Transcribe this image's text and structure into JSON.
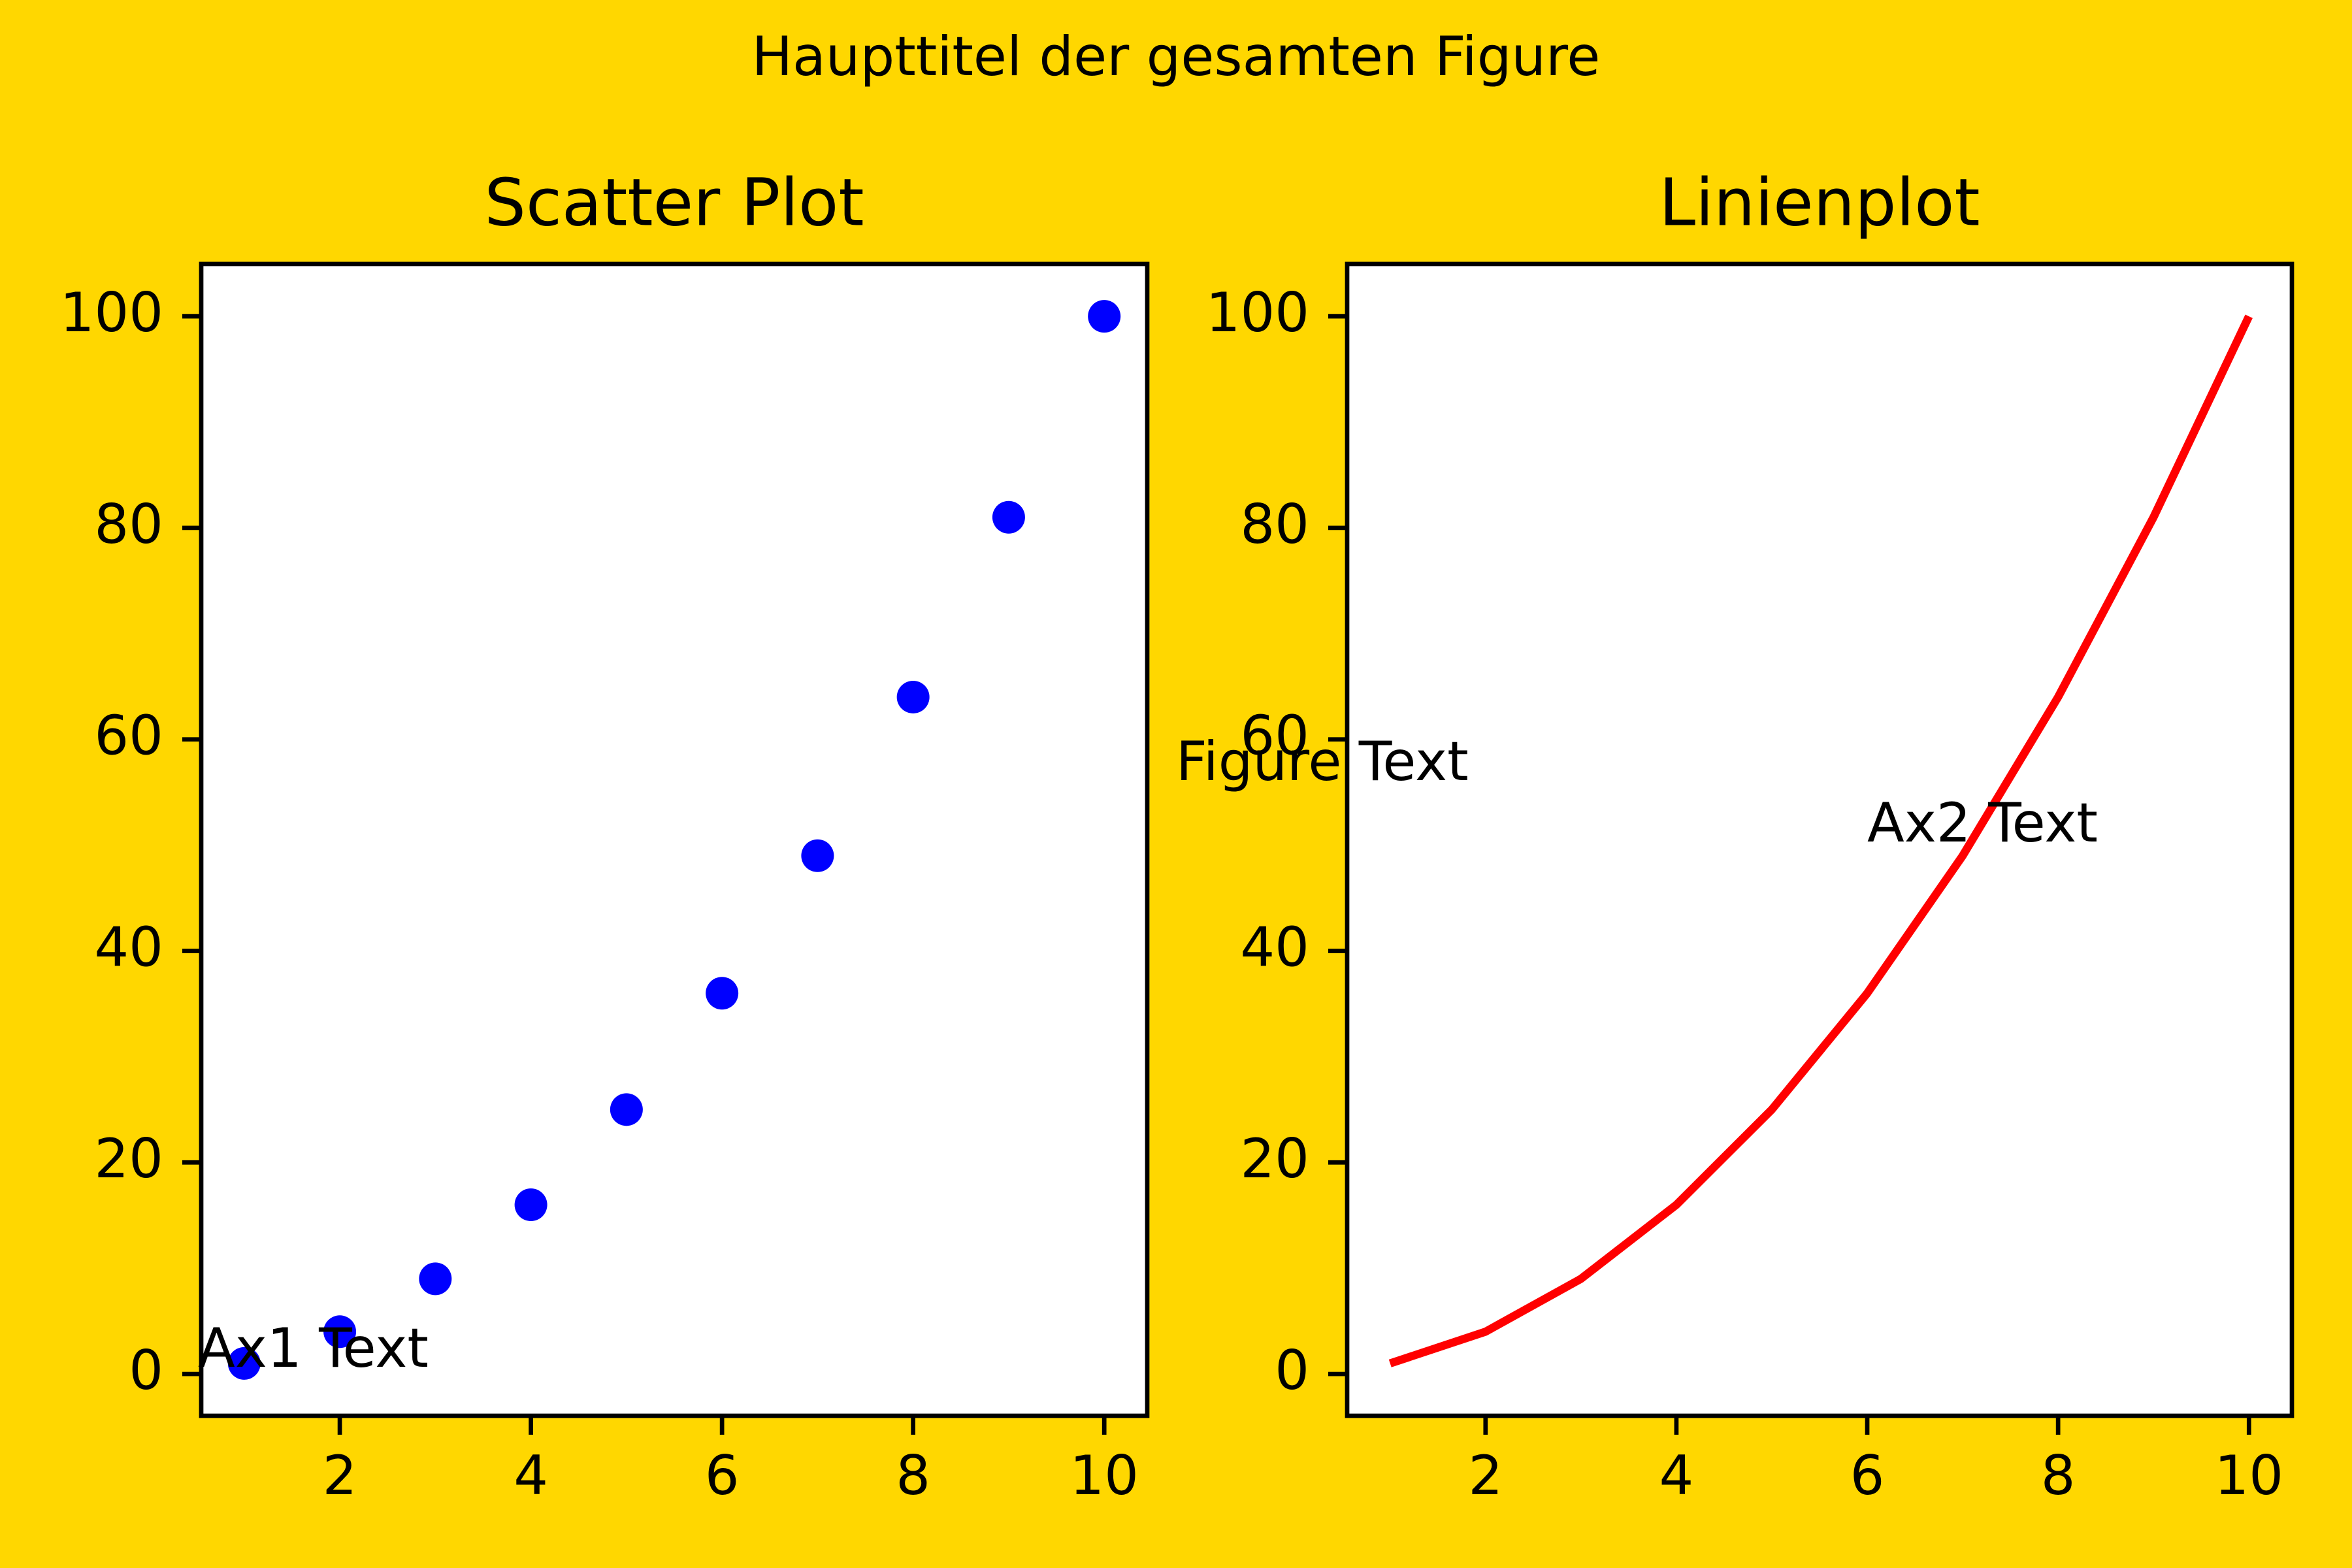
{
  "title": "Haupttitel der gesamten Figure",
  "figure_text": "Figure Text",
  "chart_data": [
    {
      "type": "scatter",
      "title": "Scatter Plot",
      "annotation": "Ax1 Text",
      "x": [
        1,
        2,
        3,
        4,
        5,
        6,
        7,
        8,
        9,
        10
      ],
      "series": [
        {
          "color": "#0000ff",
          "values": [
            1,
            4,
            9,
            16,
            25,
            36,
            49,
            64,
            81,
            100
          ]
        }
      ],
      "xlim": [
        0.55,
        10.45
      ],
      "ylim": [
        -3.95,
        104.95
      ],
      "xticks": [
        2,
        4,
        6,
        8,
        10
      ],
      "yticks": [
        0,
        20,
        40,
        60,
        80,
        100
      ]
    },
    {
      "type": "line",
      "title": "Linienplot",
      "annotation": "Ax2 Text",
      "x": [
        1,
        2,
        3,
        4,
        5,
        6,
        7,
        8,
        9,
        10
      ],
      "series": [
        {
          "color": "#ff0000",
          "values": [
            1,
            4,
            9,
            16,
            25,
            36,
            49,
            64,
            81,
            100
          ]
        }
      ],
      "xlim": [
        0.55,
        10.45
      ],
      "ylim": [
        -3.95,
        104.95
      ],
      "xticks": [
        2,
        4,
        6,
        8,
        10
      ],
      "yticks": [
        0,
        20,
        40,
        60,
        80,
        100
      ]
    }
  ]
}
